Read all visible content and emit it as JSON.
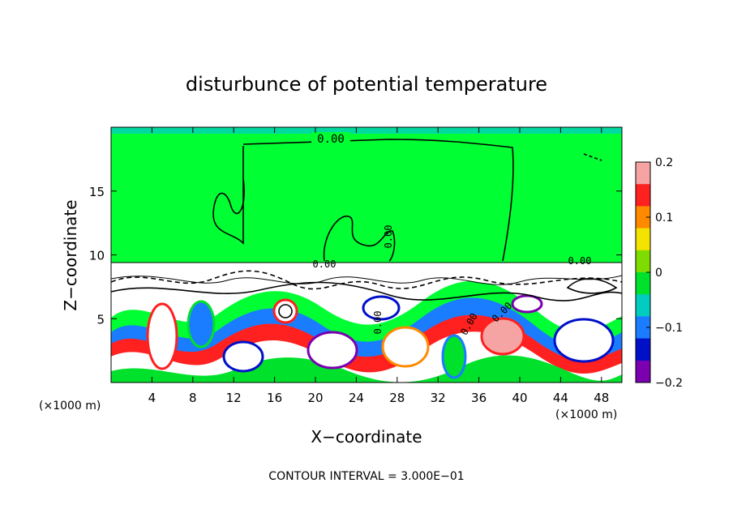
{
  "chart_data": {
    "type": "heatmap",
    "title": "disturbunce of potential temperature",
    "xlabel": "X−coordinate",
    "ylabel": "Z−coordinate",
    "x_unit_left": "(×1000 m)",
    "x_unit_right": "(×1000 m)",
    "xlim": [
      0,
      50
    ],
    "ylim": [
      0,
      20
    ],
    "x_ticks": [
      4,
      8,
      12,
      16,
      20,
      24,
      28,
      32,
      36,
      40,
      44,
      48
    ],
    "x_tick_labels": [
      "4",
      "8",
      "12",
      "16",
      "20",
      "24",
      "28",
      "32",
      "36",
      "40",
      "44",
      "48"
    ],
    "y_ticks": [
      5,
      10,
      15
    ],
    "y_tick_labels": [
      "5",
      "10",
      "15"
    ],
    "colorbar": {
      "min": -0.2,
      "max": 0.2,
      "ticks": [
        0.2,
        0.1,
        0,
        -0.1,
        -0.2
      ],
      "tick_labels": [
        "0.2",
        "0.1",
        "0",
        "−0.1",
        "−0.2"
      ],
      "colors": [
        "#f6a3a3",
        "#ff2020",
        "#ff8a00",
        "#f4e300",
        "#7edc00",
        "#00e12c",
        "#00ccc0",
        "#1a7cff",
        "#0010c8",
        "#7a00b0"
      ]
    },
    "contour_labels": [
      "0.00",
      "0.00",
      "0.00",
      "0.00",
      "0.00",
      "0.00",
      "0.00"
    ],
    "footer": "CONTOUR INTERVAL = 3.000E−01",
    "background_value": 0,
    "background_color": "#00ff33",
    "turbulent_layer_top_z": 9.5
  }
}
